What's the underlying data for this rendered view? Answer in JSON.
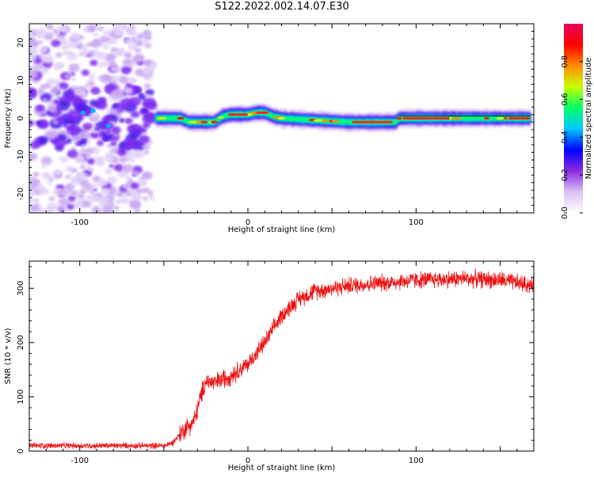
{
  "title": "S122.2022.002.14.07.E30",
  "chart_data": [
    {
      "type": "heatmap",
      "xlabel": "Height of straight line (km)",
      "ylabel": "Frequency (Hz)",
      "xlim": [
        -130,
        170
      ],
      "ylim": [
        -25,
        25
      ],
      "xticks": [
        -100,
        0,
        100
      ],
      "yticks": [
        -20,
        -10,
        0,
        10,
        20
      ],
      "colorbar": {
        "label": "Normalized spectral amplitude",
        "range": [
          0,
          1
        ],
        "ticks": [
          "0.0",
          "0.2",
          "0.4",
          "0.6",
          "0.8"
        ],
        "colors": [
          "#ffffff",
          "#d8c2f4",
          "#8a2be2",
          "#0000ff",
          "#00c8ff",
          "#00ff66",
          "#c8ff00",
          "#ff8c00",
          "#ff0000",
          "#e8005a"
        ]
      },
      "ridge": {
        "description_points": [
          [
            -55,
            0.0
          ],
          [
            -50,
            0.0
          ],
          [
            -40,
            0.0
          ],
          [
            -35,
            -1.0
          ],
          [
            -30,
            -1.0
          ],
          [
            -20,
            -1.0
          ],
          [
            -15,
            0.5
          ],
          [
            -10,
            1.0
          ],
          [
            0,
            1.0
          ],
          [
            5,
            1.5
          ],
          [
            10,
            1.5
          ],
          [
            15,
            0.5
          ],
          [
            20,
            0.0
          ],
          [
            40,
            -0.5
          ],
          [
            60,
            -1.0
          ],
          [
            80,
            -1.0
          ],
          [
            88,
            -1.0
          ],
          [
            90,
            0.0
          ],
          [
            110,
            0.0
          ],
          [
            130,
            0.0
          ],
          [
            150,
            0.0
          ],
          [
            168,
            0.0
          ]
        ],
        "noise_region_x": [
          -130,
          -57
        ]
      }
    },
    {
      "type": "line",
      "xlabel": "Height of straight line (km)",
      "ylabel": "SNR (10 * v/v)",
      "xlim": [
        -130,
        170
      ],
      "ylim": [
        0,
        350
      ],
      "xticks": [
        -100,
        0,
        100
      ],
      "yticks": [
        0,
        100,
        200,
        300
      ],
      "series": [
        {
          "color": "#ee1111",
          "trend": [
            [
              -130,
              10
            ],
            [
              -50,
              10
            ],
            [
              -45,
              15
            ],
            [
              -38,
              40
            ],
            [
              -32,
              55
            ],
            [
              -28,
              100
            ],
            [
              -25,
              130
            ],
            [
              -20,
              125
            ],
            [
              -10,
              140
            ],
            [
              0,
              160
            ],
            [
              10,
              200
            ],
            [
              20,
              250
            ],
            [
              30,
              280
            ],
            [
              40,
              295
            ],
            [
              60,
              305
            ],
            [
              80,
              310
            ],
            [
              100,
              315
            ],
            [
              130,
              318
            ],
            [
              150,
              315
            ],
            [
              170,
              305
            ]
          ]
        }
      ]
    }
  ]
}
